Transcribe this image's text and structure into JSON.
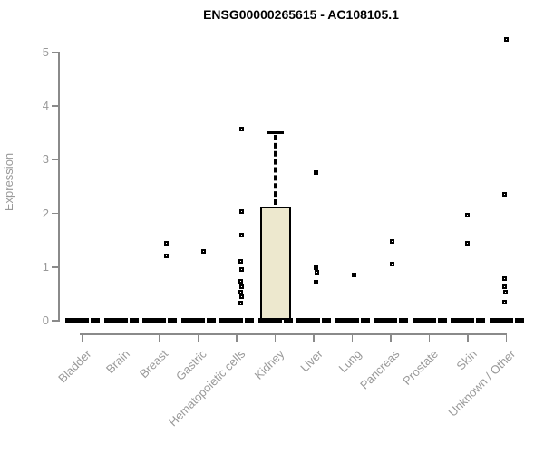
{
  "title": "ENSG00000265615 - AC108105.1",
  "y_axis": {
    "label": "Expression"
  },
  "colors": {
    "box_fill": "#EDE8CE",
    "box_border": "#000000",
    "zero_bar": "#000000",
    "axis": "#8A8A8A",
    "tick_text": "#999999",
    "title_text": "#000000"
  },
  "chart_data": {
    "type": "boxplot",
    "title": "ENSG00000265615 - AC108105.1",
    "xlabel": "",
    "ylabel": "Expression",
    "ylim": [
      0,
      5.3
    ],
    "yticks": [
      0,
      1,
      2,
      3,
      4,
      5
    ],
    "grid": false,
    "legend": false,
    "categories": [
      "Bladder",
      "Brain",
      "Breast",
      "Gastric",
      "Hematopoietic cells",
      "Kidney",
      "Liver",
      "Lung",
      "Pancreas",
      "Prostate",
      "Skin",
      "Unknown / Other"
    ],
    "boxes": [
      {
        "category": "Bladder",
        "median": 0,
        "q1": 0,
        "q3": 0,
        "whisker_high": null,
        "points": []
      },
      {
        "category": "Brain",
        "median": 0,
        "q1": 0,
        "q3": 0,
        "whisker_high": null,
        "points": []
      },
      {
        "category": "Breast",
        "median": 0,
        "q1": 0,
        "q3": 0,
        "whisker_high": null,
        "points": [
          [
            7,
            1.45
          ],
          [
            7,
            1.2
          ]
        ]
      },
      {
        "category": "Gastric",
        "median": 0,
        "q1": 0,
        "q3": 0,
        "whisker_high": null,
        "points": [
          [
            6,
            1.3
          ]
        ]
      },
      {
        "category": "Hematopoietic cells",
        "median": 0,
        "q1": 0,
        "q3": 0,
        "whisker_high": null,
        "points": [
          [
            5,
            3.57
          ],
          [
            5,
            2.03
          ],
          [
            5,
            1.59
          ],
          [
            4,
            1.1
          ],
          [
            5,
            0.96
          ],
          [
            4,
            0.74
          ],
          [
            5,
            0.64
          ],
          [
            4,
            0.53
          ],
          [
            5,
            0.45
          ],
          [
            4,
            0.33
          ]
        ]
      },
      {
        "category": "Kidney",
        "median": 0,
        "q1": 0,
        "q3": 2.12,
        "whisker_high": 3.5,
        "points": []
      },
      {
        "category": "Liver",
        "median": 0,
        "q1": 0,
        "q3": 0,
        "whisker_high": null,
        "points": [
          [
            2,
            2.77
          ],
          [
            2,
            0.98
          ],
          [
            3,
            0.9
          ],
          [
            2,
            0.71
          ]
        ]
      },
      {
        "category": "Lung",
        "median": 0,
        "q1": 0,
        "q3": 0,
        "whisker_high": null,
        "points": [
          [
            2,
            0.86
          ]
        ]
      },
      {
        "category": "Pancreas",
        "median": 0,
        "q1": 0,
        "q3": 0,
        "whisker_high": null,
        "points": [
          [
            1,
            1.47
          ],
          [
            1,
            1.05
          ]
        ]
      },
      {
        "category": "Prostate",
        "median": 0,
        "q1": 0,
        "q3": 0,
        "whisker_high": null,
        "points": []
      },
      {
        "category": "Skin",
        "median": 0,
        "q1": 0,
        "q3": 0,
        "whisker_high": null,
        "points": [
          [
            -1,
            1.96
          ],
          [
            -1,
            1.44
          ]
        ]
      },
      {
        "category": "Unknown / Other",
        "median": 0,
        "q1": 0,
        "q3": 0,
        "whisker_high": null,
        "points": [
          [
            0,
            5.25
          ],
          [
            -2,
            2.36
          ],
          [
            -2,
            0.79
          ],
          [
            -2,
            0.64
          ],
          [
            -1,
            0.54
          ],
          [
            -2,
            0.34
          ]
        ]
      }
    ]
  }
}
